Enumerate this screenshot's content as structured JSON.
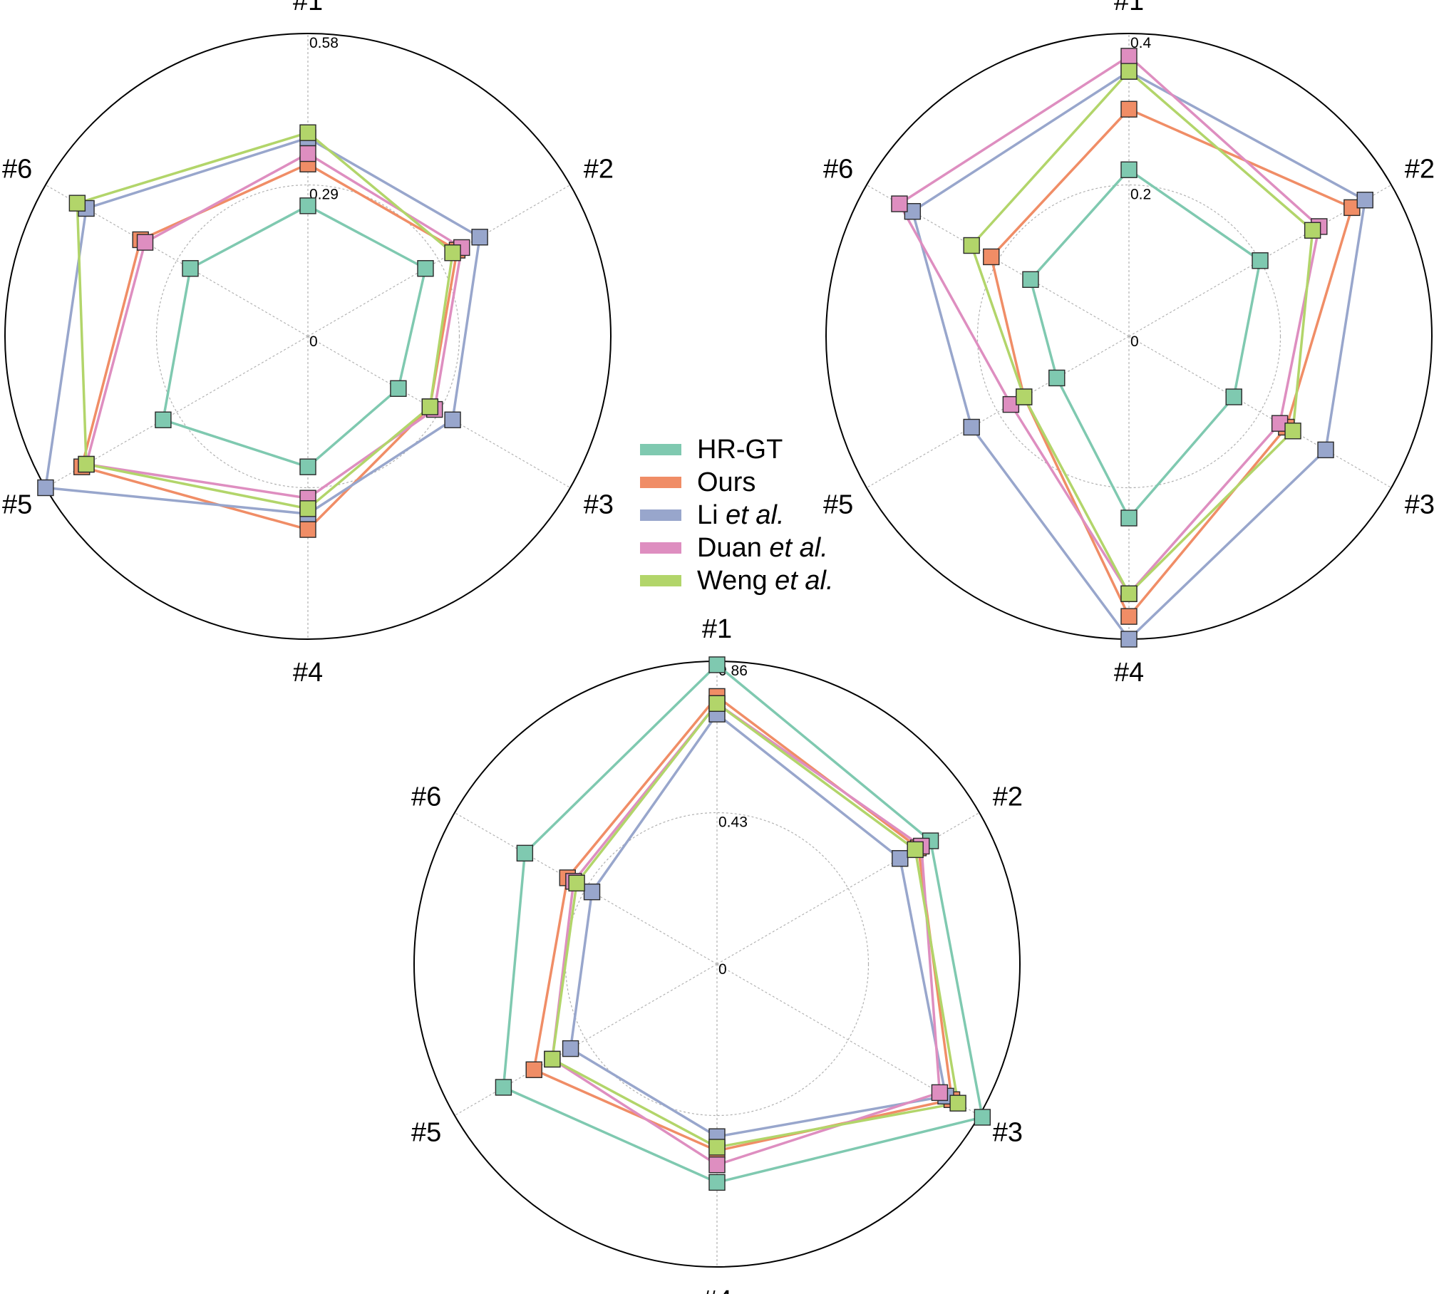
{
  "legend": [
    {
      "name": "HR-GT",
      "plain": "HR-GT",
      "italic": "",
      "color": "#7fc9b0"
    },
    {
      "name": "Ours",
      "plain": "Ours",
      "italic": "",
      "color": "#f08d66"
    },
    {
      "name": "Li et al.",
      "plain": "Li ",
      "italic": "et al.",
      "color": "#98a6cc"
    },
    {
      "name": "Duan et al.",
      "plain": "Duan ",
      "italic": "et al.",
      "color": "#de8ec0"
    },
    {
      "name": "Weng et al.",
      "plain": "Weng ",
      "italic": "et al.",
      "color": "#b2d56a"
    }
  ],
  "chart_data": [
    {
      "type": "radar",
      "axes": [
        "#1",
        "#2",
        "#3",
        "#4",
        "#5",
        "#6"
      ],
      "rlim": [
        0,
        0.58
      ],
      "tick_labels": [
        "0",
        "0.29",
        "0.58"
      ],
      "grid": true,
      "series": [
        {
          "name": "HR-GT",
          "values": [
            0.25,
            0.26,
            0.2,
            0.25,
            0.32,
            0.26
          ]
        },
        {
          "name": "Ours",
          "values": [
            0.33,
            0.33,
            0.27,
            0.37,
            0.5,
            0.37
          ]
        },
        {
          "name": "Li et al.",
          "values": [
            0.38,
            0.38,
            0.32,
            0.34,
            0.58,
            0.49
          ]
        },
        {
          "name": "Duan et al.",
          "values": [
            0.35,
            0.34,
            0.28,
            0.31,
            0.49,
            0.36
          ]
        },
        {
          "name": "Weng et al.",
          "values": [
            0.39,
            0.32,
            0.27,
            0.33,
            0.49,
            0.51
          ]
        }
      ]
    },
    {
      "type": "radar",
      "axes": [
        "#1",
        "#2",
        "#3",
        "#4",
        "#5",
        "#6"
      ],
      "rlim": [
        0,
        0.4
      ],
      "tick_labels": [
        "0",
        "0.2",
        "0.4"
      ],
      "grid": true,
      "series": [
        {
          "name": "HR-GT",
          "values": [
            0.22,
            0.2,
            0.16,
            0.24,
            0.11,
            0.15
          ]
        },
        {
          "name": "Ours",
          "values": [
            0.3,
            0.34,
            0.24,
            0.37,
            0.16,
            0.21
          ]
        },
        {
          "name": "Li et al.",
          "values": [
            0.35,
            0.36,
            0.3,
            0.4,
            0.24,
            0.33
          ]
        },
        {
          "name": "Duan et al.",
          "values": [
            0.37,
            0.29,
            0.23,
            0.34,
            0.18,
            0.35
          ]
        },
        {
          "name": "Weng et al.",
          "values": [
            0.35,
            0.28,
            0.25,
            0.34,
            0.16,
            0.24
          ]
        }
      ]
    },
    {
      "type": "radar",
      "axes": [
        "#1",
        "#2",
        "#3",
        "#4",
        "#5",
        "#6"
      ],
      "rlim": [
        0,
        0.86
      ],
      "tick_labels": [
        "0",
        "0.43",
        "0.86"
      ],
      "grid": true,
      "series": [
        {
          "name": "HR-GT",
          "values": [
            0.85,
            0.7,
            0.87,
            0.62,
            0.7,
            0.63
          ]
        },
        {
          "name": "Ours",
          "values": [
            0.76,
            0.66,
            0.77,
            0.53,
            0.6,
            0.49
          ]
        },
        {
          "name": "Li et al.",
          "values": [
            0.71,
            0.6,
            0.75,
            0.49,
            0.48,
            0.41
          ]
        },
        {
          "name": "Duan et al.",
          "values": [
            0.74,
            0.67,
            0.73,
            0.57,
            0.54,
            0.47
          ]
        },
        {
          "name": "Weng et al.",
          "values": [
            0.74,
            0.65,
            0.79,
            0.52,
            0.54,
            0.46
          ]
        }
      ]
    }
  ]
}
